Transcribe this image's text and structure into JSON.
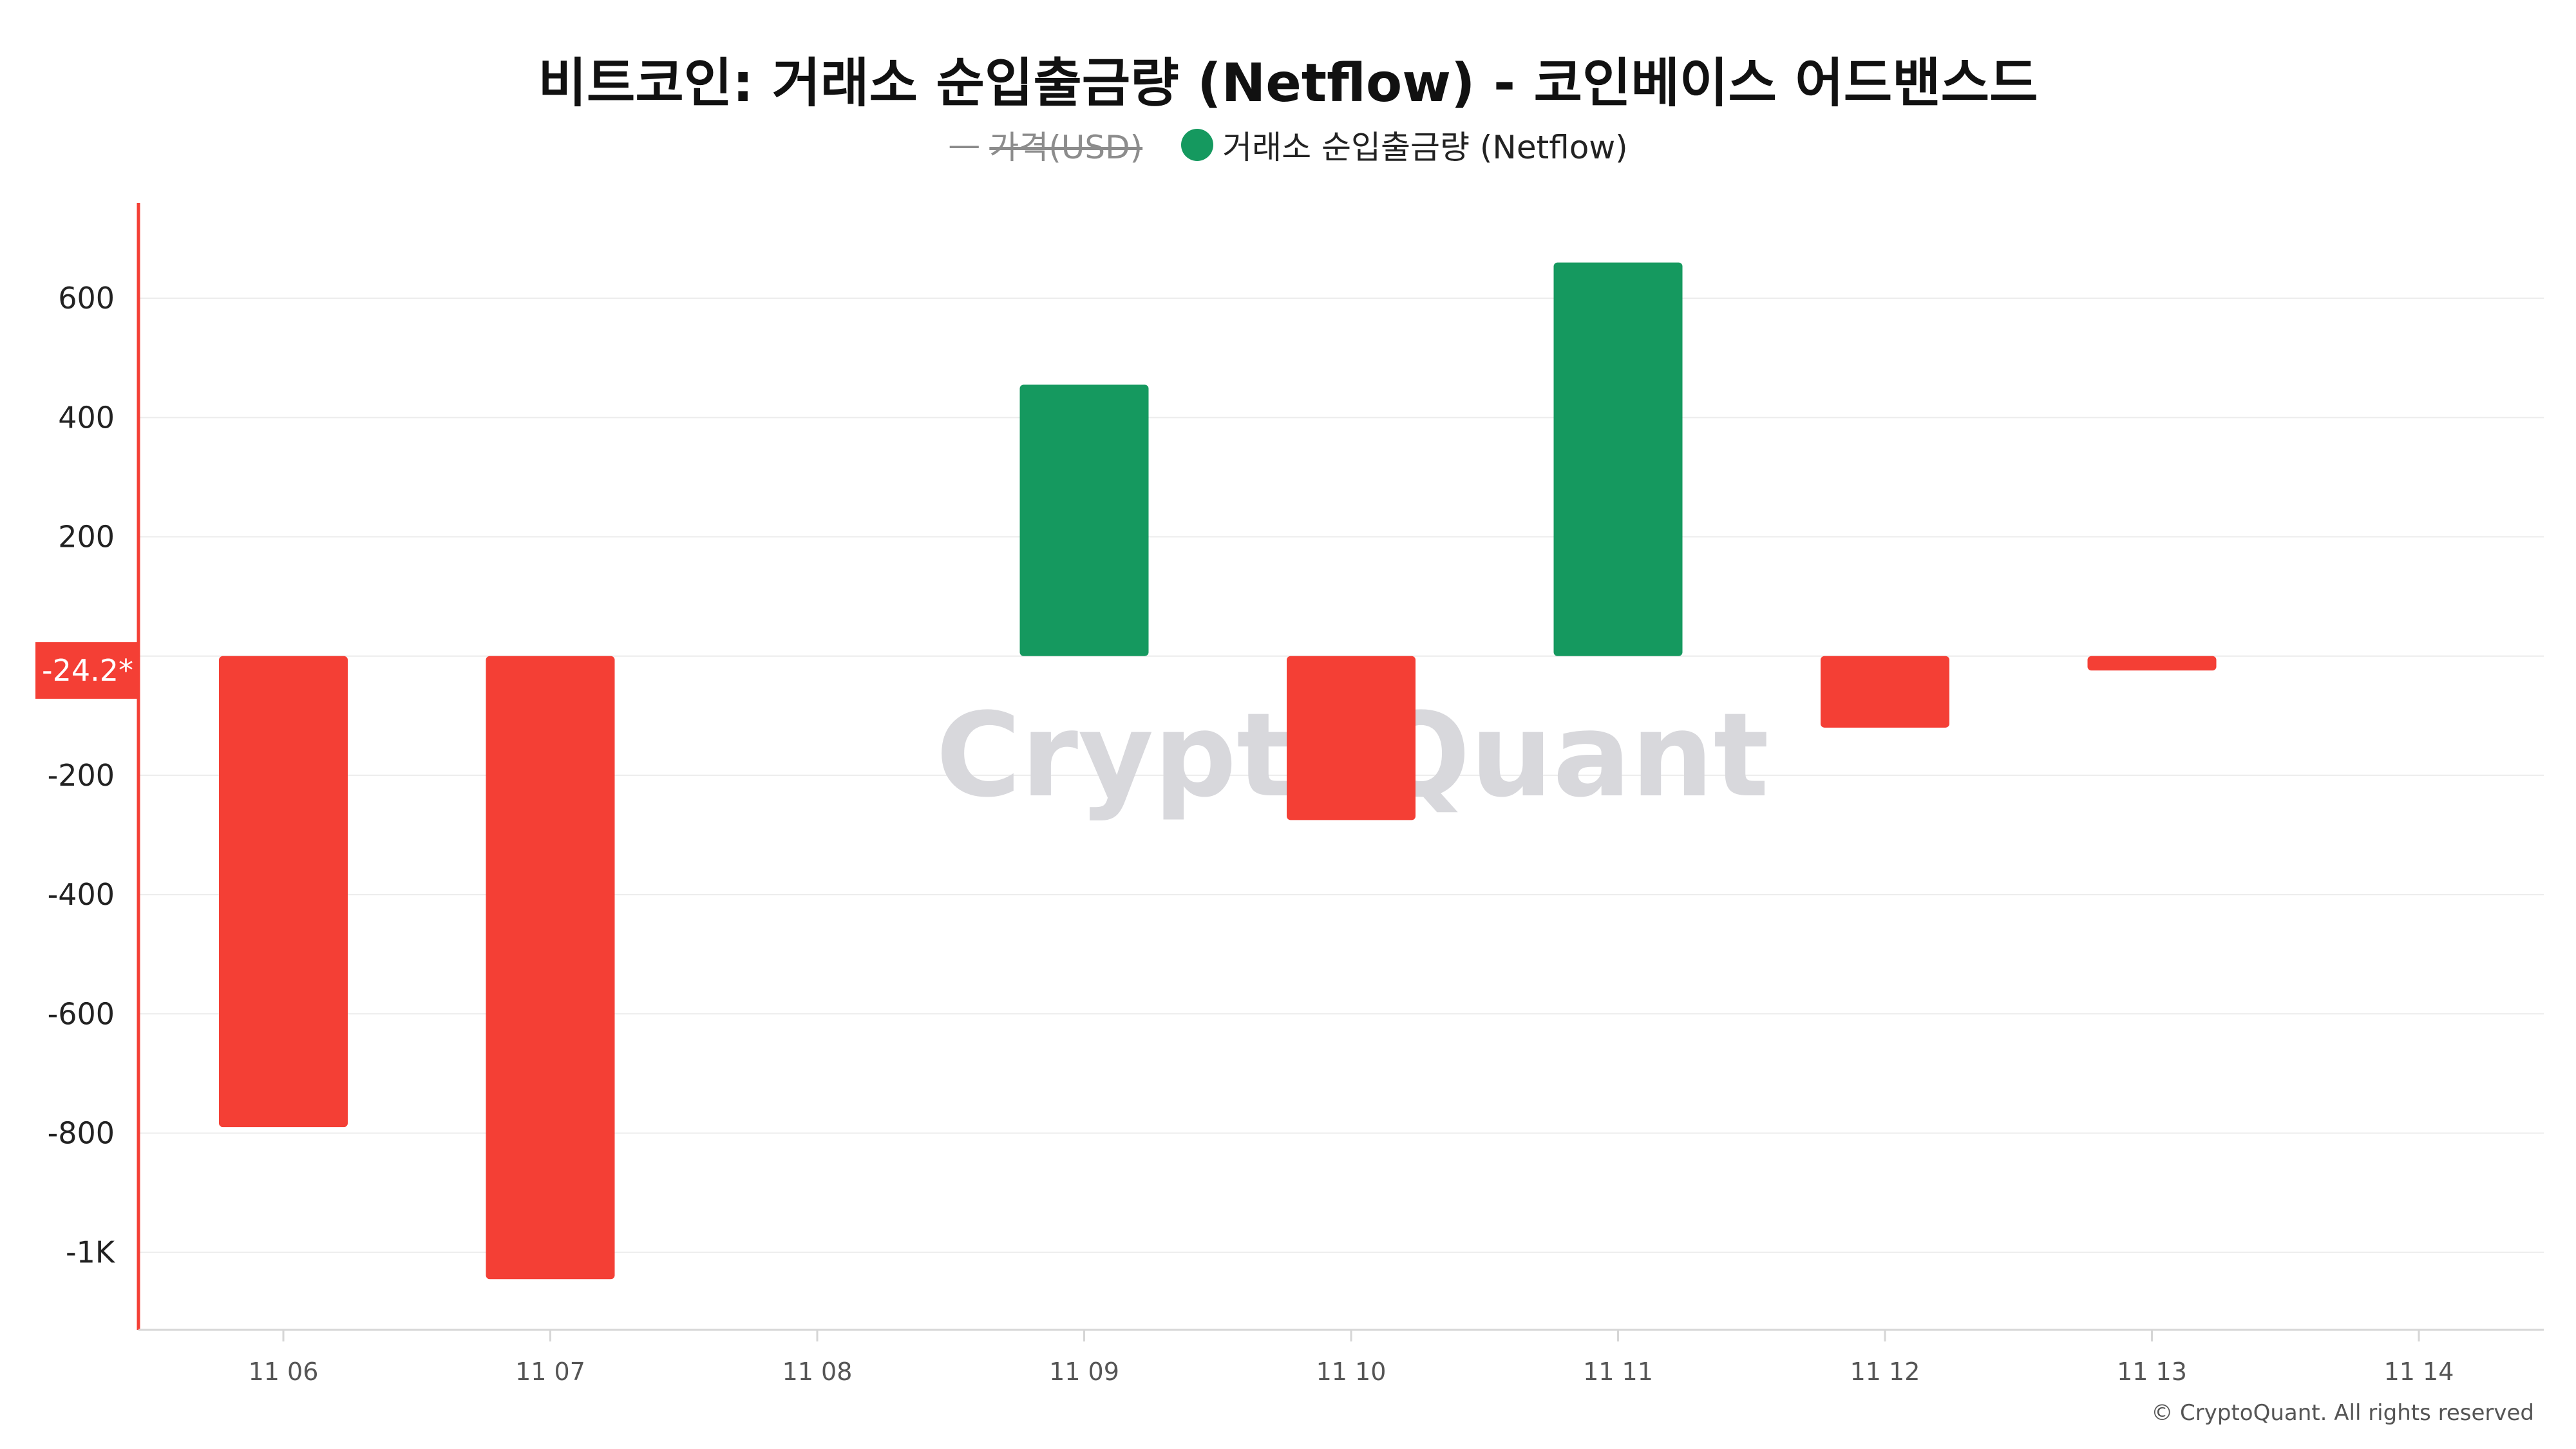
{
  "chart_data": {
    "type": "bar",
    "title": "비트코인: 거래소 순입출금량 (Netflow) - 코인베이스 어드밴스드",
    "legend": [
      {
        "name": "가격(USD)",
        "hidden": true,
        "color": "#8c8c8c"
      },
      {
        "name": "거래소 순입출금량 (Netflow)",
        "color": "#15995f"
      }
    ],
    "categories": [
      "11 06",
      "11 07",
      "11 08",
      "11 09",
      "11 10",
      "11 11",
      "11 12",
      "11 13",
      "11 14"
    ],
    "series": [
      {
        "name": "거래소 순입출금량 (Netflow)",
        "values": [
          -790,
          -1045,
          null,
          455,
          -275,
          660,
          -120,
          -24.2,
          null
        ]
      }
    ],
    "y_ticks": [
      600,
      400,
      200,
      -200,
      -400,
      -600,
      -800,
      -1000
    ],
    "y_tick_labels": [
      "600",
      "400",
      "200",
      "-200",
      "-400",
      "-600",
      "-800",
      "-1K"
    ],
    "ylim": [
      -1130,
      760
    ],
    "current_value_label": "-24.2*",
    "colors": {
      "positive": "#15995f",
      "negative": "#f43f35",
      "axis_marker": "#f43f35"
    },
    "grid": true,
    "legend_position": "top-center",
    "watermark": "CryptoQuant",
    "footer": "© CryptoQuant. All rights reserved"
  }
}
